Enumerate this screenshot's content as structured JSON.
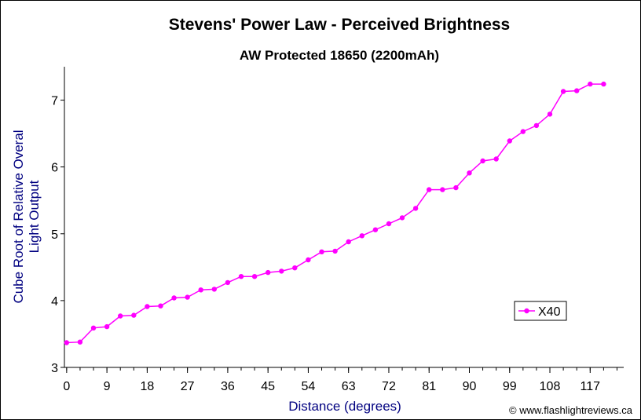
{
  "chart_data": {
    "type": "line",
    "title": "Stevens' Power Law - Perceived Brightness",
    "subtitle": "AW Protected 18650 (2200mAh)",
    "xlabel": "Distance (degrees)",
    "ylabel_lines": [
      "Cube Root of Relative Overal",
      "Light Output"
    ],
    "xlim": [
      -0.5,
      124.5
    ],
    "ylim": [
      3,
      7.5
    ],
    "x_ticks": [
      0,
      9,
      18,
      27,
      36,
      45,
      54,
      63,
      72,
      81,
      90,
      99,
      108,
      117
    ],
    "y_ticks": [
      3,
      4,
      5,
      6,
      7
    ],
    "grid": false,
    "legend_position": "right",
    "series": [
      {
        "name": "X40",
        "color": "#FF00FF",
        "x": [
          0,
          3,
          6,
          9,
          12,
          15,
          18,
          21,
          24,
          27,
          30,
          33,
          36,
          39,
          42,
          45,
          48,
          51,
          54,
          57,
          60,
          63,
          66,
          69,
          72,
          75,
          78,
          81,
          84,
          87,
          90,
          93,
          96,
          99,
          102,
          105,
          108,
          111,
          114,
          117,
          120
        ],
        "values": [
          3.37,
          3.38,
          3.59,
          3.61,
          3.77,
          3.78,
          3.91,
          3.92,
          4.04,
          4.05,
          4.16,
          4.17,
          4.27,
          4.36,
          4.36,
          4.42,
          4.44,
          4.49,
          4.61,
          4.73,
          4.74,
          4.88,
          4.97,
          5.06,
          5.15,
          5.24,
          5.38,
          5.66,
          5.66,
          5.69,
          5.91,
          6.09,
          6.12,
          6.39,
          6.53,
          6.62,
          6.79,
          7.13,
          7.14,
          7.24,
          7.24
        ]
      }
    ],
    "credit": "© www.flashlightreviews.ca",
    "colors": {
      "axis_title": "#000080",
      "frame": "#000000",
      "background": "#FFFFFF"
    }
  }
}
